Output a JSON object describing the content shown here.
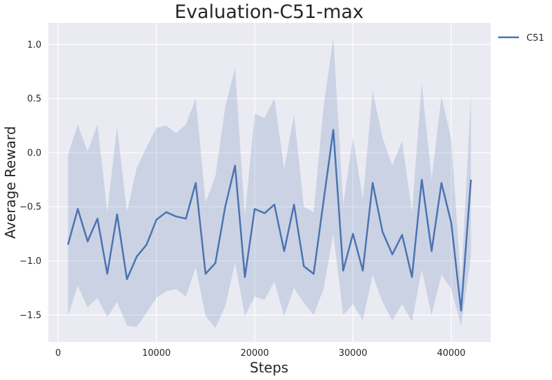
{
  "chart_data": {
    "type": "line",
    "title": "Evaluation-C51-max",
    "xlabel": "Steps",
    "ylabel": "Average Reward",
    "xlim": [
      -1000,
      44000
    ],
    "ylim": [
      -1.75,
      1.2
    ],
    "x_ticks": [
      0,
      10000,
      20000,
      30000,
      40000
    ],
    "x_tick_labels": [
      "0",
      "10000",
      "20000",
      "30000",
      "40000"
    ],
    "y_ticks": [
      -1.5,
      -1.0,
      -0.5,
      0.0,
      0.5,
      1.0
    ],
    "y_tick_labels": [
      "−1.5",
      "−1.0",
      "−0.5",
      "0.0",
      "0.5",
      "1.0"
    ],
    "grid": true,
    "legend_position": "outside-top-right",
    "colors": {
      "background": "#EAEAF2",
      "grid": "#FFFFFF",
      "line": "#4C72B0",
      "band": "#4C72B0"
    },
    "x": [
      1000,
      2000,
      3000,
      4000,
      5000,
      6000,
      7000,
      8000,
      9000,
      10000,
      11000,
      12000,
      13000,
      14000,
      15000,
      16000,
      17000,
      18000,
      19000,
      20000,
      21000,
      22000,
      23000,
      24000,
      25000,
      26000,
      27000,
      28000,
      29000,
      30000,
      31000,
      32000,
      33000,
      34000,
      35000,
      36000,
      37000,
      38000,
      39000,
      40000,
      41000,
      42000
    ],
    "series": [
      {
        "name": "C51",
        "values": [
          -0.85,
          -0.52,
          -0.82,
          -0.61,
          -1.12,
          -0.57,
          -1.17,
          -0.96,
          -0.85,
          -0.62,
          -0.55,
          -0.59,
          -0.61,
          -0.28,
          -1.12,
          -1.02,
          -0.5,
          -0.12,
          -1.15,
          -0.52,
          -0.56,
          -0.48,
          -0.91,
          -0.48,
          -1.05,
          -1.12,
          -0.45,
          0.21,
          -1.09,
          -0.75,
          -1.09,
          -0.28,
          -0.73,
          -0.94,
          -0.76,
          -1.15,
          -0.25,
          -0.91,
          -0.28,
          -0.65,
          -1.46,
          -0.25
        ],
        "upper": [
          -0.02,
          0.26,
          0.01,
          0.26,
          -0.55,
          0.24,
          -0.55,
          -0.14,
          0.05,
          0.23,
          0.25,
          0.18,
          0.26,
          0.5,
          -0.46,
          -0.22,
          0.42,
          0.78,
          -0.59,
          0.36,
          0.32,
          0.5,
          -0.15,
          0.35,
          -0.5,
          -0.55,
          0.42,
          1.06,
          -0.48,
          0.14,
          -0.43,
          0.57,
          0.14,
          -0.12,
          0.11,
          -0.55,
          0.64,
          -0.25,
          0.52,
          0.12,
          -1.2,
          0.53
        ],
        "lower": [
          -1.51,
          -1.23,
          -1.43,
          -1.34,
          -1.52,
          -1.38,
          -1.6,
          -1.61,
          -1.48,
          -1.34,
          -1.28,
          -1.26,
          -1.33,
          -1.06,
          -1.51,
          -1.62,
          -1.42,
          -1.02,
          -1.51,
          -1.33,
          -1.36,
          -1.19,
          -1.51,
          -1.25,
          -1.39,
          -1.5,
          -1.26,
          -0.75,
          -1.5,
          -1.4,
          -1.55,
          -1.13,
          -1.38,
          -1.55,
          -1.4,
          -1.56,
          -1.08,
          -1.5,
          -1.13,
          -1.26,
          -1.6,
          -0.96
        ]
      }
    ]
  }
}
